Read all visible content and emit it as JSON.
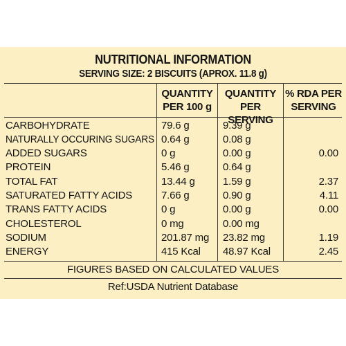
{
  "title": "NUTRITIONAL INFORMATION",
  "subtitle": "SERVING SIZE: 2 BISCUITS (APROX. 11.8 g)",
  "headers": {
    "q100_line1": "QUANTITY",
    "q100_line2": "PER 100 g",
    "qserv_line1": "QUANTITY",
    "qserv_line2": "PER SERVING",
    "rda_line1": "% RDA PER",
    "rda_line2": "SERVING"
  },
  "rows": [
    {
      "name": "CARBOHYDRATE",
      "q100": "79.6 g",
      "qserv": "9.39 g",
      "rda": ""
    },
    {
      "name": "NATURALLY OCCURING SUGARS",
      "q100": "0.64 g",
      "qserv": "0.08 g",
      "rda": ""
    },
    {
      "name": "ADDED SUGARS",
      "q100": "0 g",
      "qserv": "0.00 g",
      "rda": "0.00"
    },
    {
      "name": "PROTEIN",
      "q100": "5.46 g",
      "qserv": "0.64 g",
      "rda": ""
    },
    {
      "name": "TOTAL FAT",
      "q100": "13.44 g",
      "qserv": "1.59 g",
      "rda": "2.37"
    },
    {
      "name": "SATURATED FATTY ACIDS",
      "q100": "7.66 g",
      "qserv": "0.90 g",
      "rda": "4.11"
    },
    {
      "name": "TRANS FATTY ACIDS",
      "q100": "0 g",
      "qserv": "0.00 g",
      "rda": "0.00"
    },
    {
      "name": "CHOLESTEROL",
      "q100": "0 mg",
      "qserv": "0.00 mg",
      "rda": ""
    },
    {
      "name": "SODIUM",
      "q100": "201.87 mg",
      "qserv": "23.82 mg",
      "rda": "1.19"
    },
    {
      "name": "ENERGY",
      "q100": "415 Kcal",
      "qserv": "48.97 Kcal",
      "rda": "2.45"
    }
  ],
  "footer_note": "FIGURES BASED ON CALCULATED VALUES",
  "reference": "Ref:USDA Nutrient Database",
  "colors": {
    "background": "#fcefc4",
    "text": "#141414",
    "lines": "#3a3a3a"
  }
}
